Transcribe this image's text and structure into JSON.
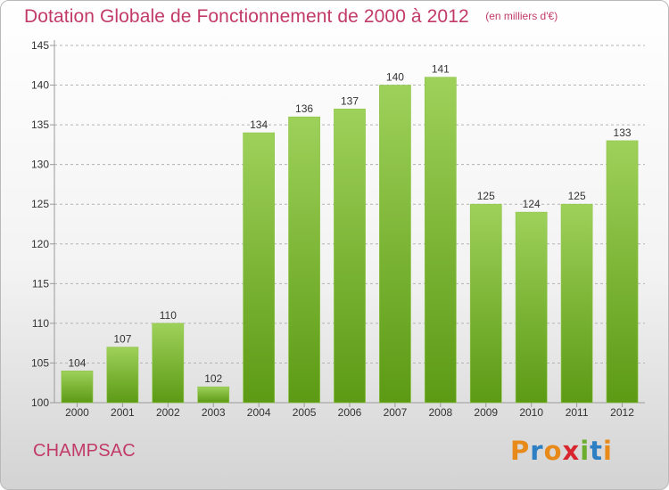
{
  "title": "Dotation Globale de Fonctionnement de 2000 à 2012",
  "unit": "(en milliers d'€)",
  "location": "CHAMPSAC",
  "logo": {
    "text": "Proxiti",
    "colors": [
      "#e88a1a",
      "#2d7fc4",
      "#e88a1a",
      "#d8262f",
      "#6bae2e",
      "#2d7fc4",
      "#e88a1a"
    ]
  },
  "colors": {
    "bar_top": "#9ed15a",
    "bar_bottom": "#5c9a14",
    "axis": "#9a9a9a",
    "grid": "#b3b3b3",
    "text": "#333333",
    "title": "#c23a67"
  },
  "chart_data": {
    "type": "bar",
    "categories": [
      "2000",
      "2001",
      "2002",
      "2003",
      "2004",
      "2005",
      "2006",
      "2007",
      "2008",
      "2009",
      "2010",
      "2011",
      "2012"
    ],
    "values": [
      104,
      107,
      110,
      102,
      134,
      136,
      137,
      140,
      141,
      125,
      124,
      125,
      133
    ],
    "data_labels": [
      "104",
      "107",
      "110",
      "102",
      "134",
      "136",
      "137",
      "140",
      "141",
      "125",
      "124",
      "125",
      "133"
    ],
    "ylim": [
      100,
      145
    ],
    "yticks": [
      "100",
      "105",
      "110",
      "115",
      "120",
      "125",
      "130",
      "135",
      "140",
      "145"
    ],
    "grid": true,
    "xlabel": "",
    "ylabel": ""
  }
}
